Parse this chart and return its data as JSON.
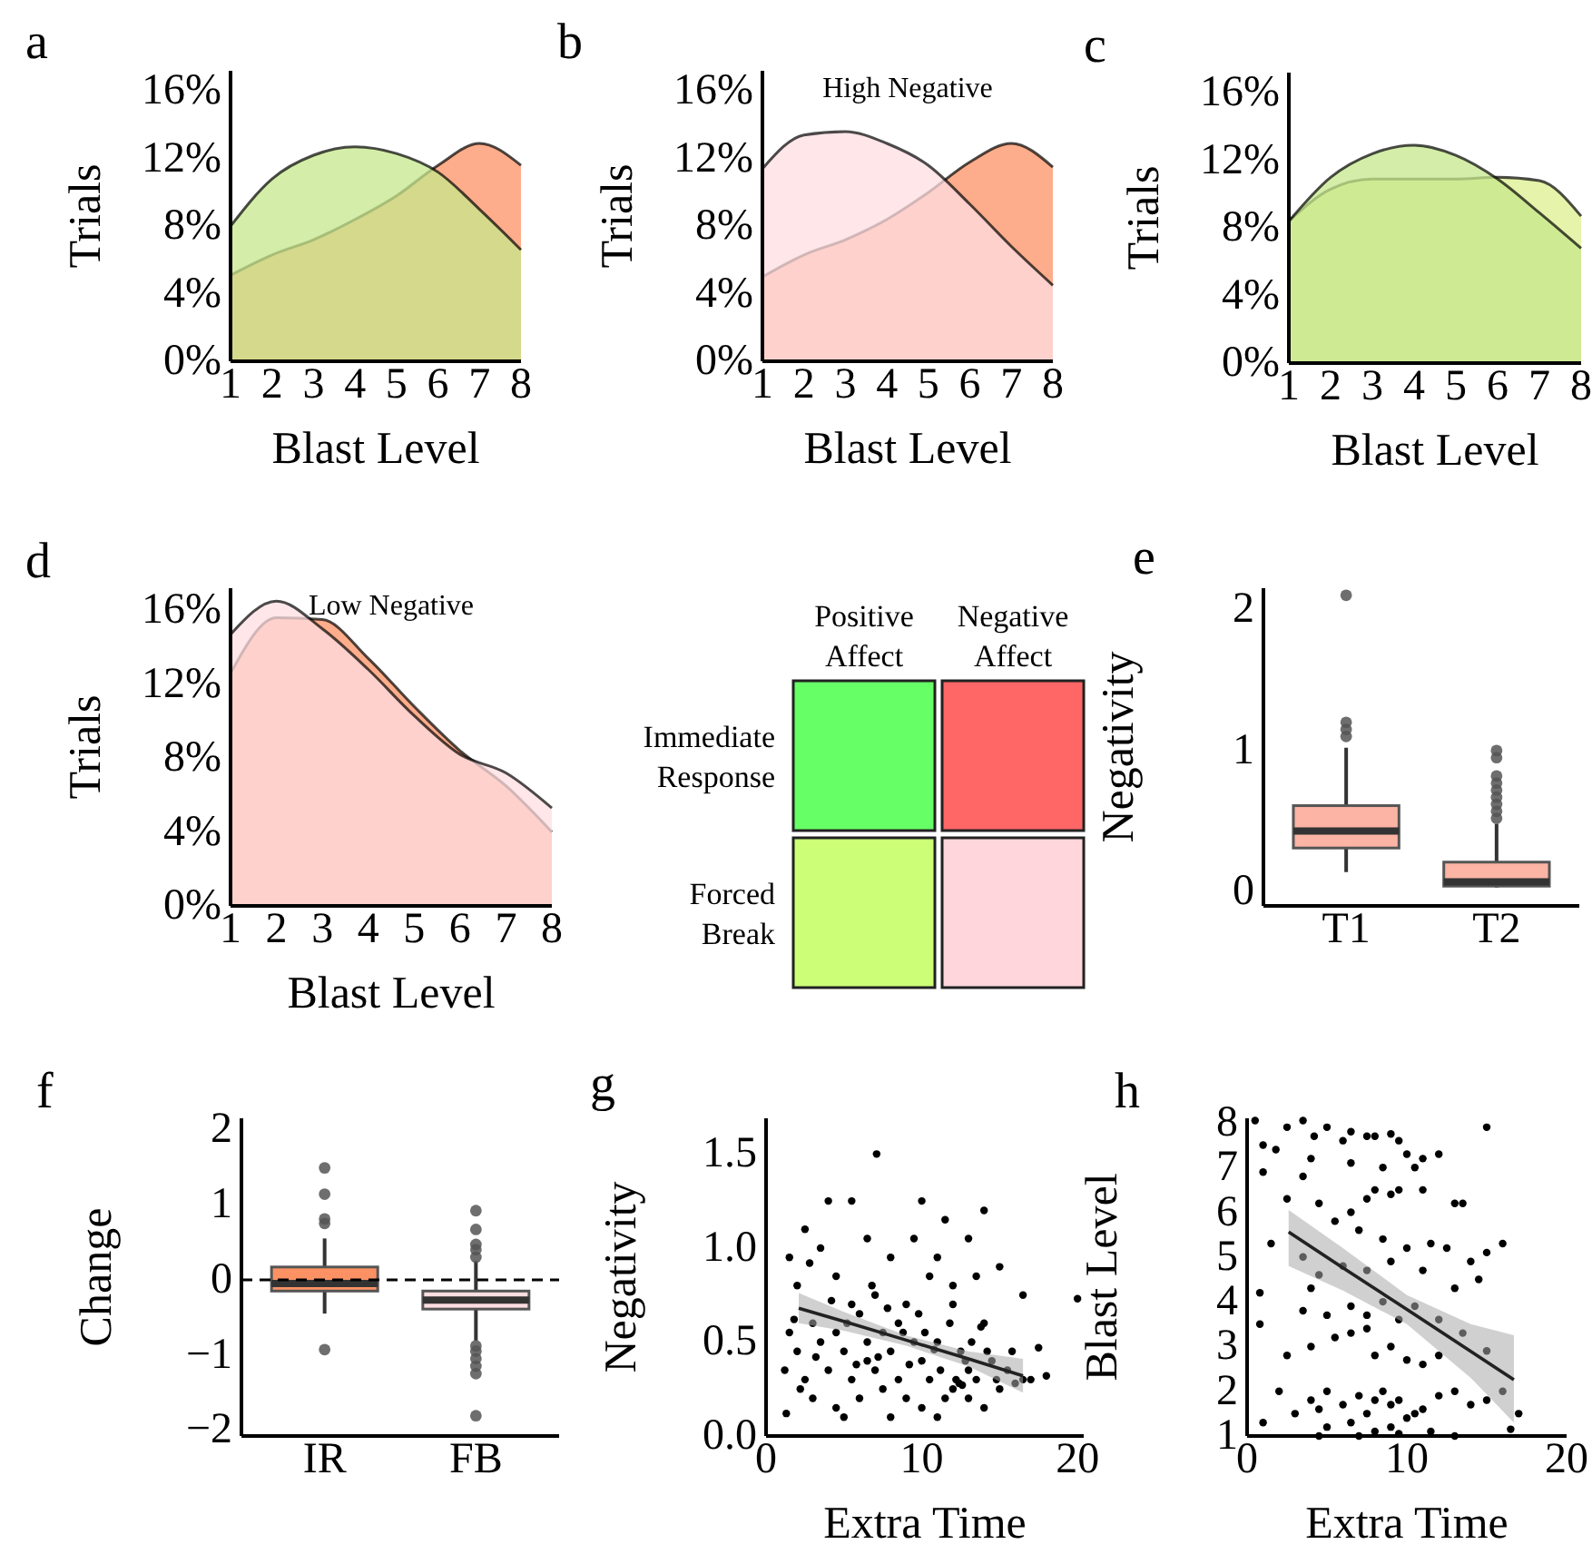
{
  "chart_data": [
    {
      "type": "area",
      "title": "a",
      "xlabel": "Blast Level",
      "ylabel": "Trials",
      "x": [
        1,
        2,
        3,
        4,
        5,
        6,
        7,
        8
      ],
      "xlim": [
        1,
        8
      ],
      "xticks": [
        1,
        2,
        3,
        4,
        5,
        6,
        7,
        8
      ],
      "ylim": [
        0,
        17.2
      ],
      "yticks": [
        {
          "value": 0,
          "label": "0%"
        },
        {
          "value": 4,
          "label": "4%"
        },
        {
          "value": 8,
          "label": "8%"
        },
        {
          "value": 12,
          "label": "12%"
        },
        {
          "value": 16,
          "label": "16%"
        }
      ],
      "series": [
        {
          "color": "#fc9264",
          "values": [
            5.1,
            6.3,
            7.2,
            8.4,
            9.8,
            11.6,
            12.9,
            11.6
          ]
        },
        {
          "color": "#c5e88c",
          "values": [
            8.0,
            10.8,
            12.2,
            12.7,
            12.3,
            11.2,
            9.0,
            6.6
          ]
        }
      ]
    },
    {
      "type": "area",
      "title": "b",
      "subtitle": "High Negative",
      "xlabel": "Blast Level",
      "ylabel": "Trials",
      "x": [
        1,
        2,
        3,
        4,
        5,
        6,
        7,
        8
      ],
      "xlim": [
        1,
        8
      ],
      "xticks": [
        1,
        2,
        3,
        4,
        5,
        6,
        7,
        8
      ],
      "ylim": [
        0,
        17.2
      ],
      "yticks": [
        {
          "value": 0,
          "label": "0%"
        },
        {
          "value": 4,
          "label": "4%"
        },
        {
          "value": 8,
          "label": "8%"
        },
        {
          "value": 12,
          "label": "12%"
        },
        {
          "value": 16,
          "label": "16%"
        }
      ],
      "series": [
        {
          "color": "#fc9264",
          "values": [
            5.0,
            6.3,
            7.2,
            8.4,
            10.0,
            11.8,
            12.9,
            11.5
          ]
        },
        {
          "color": "#fddde1",
          "values": [
            11.4,
            13.4,
            13.6,
            12.9,
            11.6,
            9.3,
            6.8,
            4.5
          ]
        }
      ]
    },
    {
      "type": "area",
      "title": "c",
      "xlabel": "Blast Level",
      "ylabel": "Trials",
      "x": [
        1,
        2,
        3,
        4,
        5,
        6,
        7,
        8
      ],
      "xlim": [
        1,
        8
      ],
      "xticks": [
        1,
        2,
        3,
        4,
        5,
        6,
        7,
        8
      ],
      "ylim": [
        0,
        17.2
      ],
      "yticks": [
        {
          "value": 0,
          "label": "0%"
        },
        {
          "value": 4,
          "label": "4%"
        },
        {
          "value": 8,
          "label": "8%"
        },
        {
          "value": 12,
          "label": "12%"
        },
        {
          "value": 16,
          "label": "16%"
        }
      ],
      "series": [
        {
          "color": "#ddf08f",
          "values": [
            8.4,
            10.3,
            10.9,
            10.9,
            10.9,
            11.0,
            10.8,
            8.7
          ]
        },
        {
          "color": "#c5e88c",
          "values": [
            8.4,
            11.0,
            12.4,
            12.9,
            12.3,
            10.9,
            8.9,
            6.8
          ]
        }
      ]
    },
    {
      "type": "area",
      "title": "d",
      "subtitle": "Low Negative",
      "xlabel": "Blast Level",
      "ylabel": "Trials",
      "x": [
        1,
        2,
        3,
        4,
        5,
        6,
        7,
        8
      ],
      "xlim": [
        1,
        8
      ],
      "xticks": [
        1,
        2,
        3,
        4,
        5,
        6,
        7,
        8
      ],
      "ylim": [
        0,
        17.2
      ],
      "yticks": [
        {
          "value": 0,
          "label": "0%"
        },
        {
          "value": 4,
          "label": "4%"
        },
        {
          "value": 8,
          "label": "8%"
        },
        {
          "value": 12,
          "label": "12%"
        },
        {
          "value": 16,
          "label": "16%"
        }
      ],
      "series": [
        {
          "color": "#fc9264",
          "values": [
            12.6,
            15.6,
            15.5,
            13.4,
            10.8,
            8.4,
            6.5,
            4.0
          ]
        },
        {
          "color": "#fddde1",
          "values": [
            14.7,
            16.5,
            15.0,
            12.8,
            10.3,
            8.2,
            7.2,
            5.3
          ]
        }
      ]
    },
    {
      "type": "other",
      "categories": [
        "Positive Affect",
        "Negative Affect"
      ],
      "y_categories": [
        "Immediate Response",
        "Forced Break"
      ],
      "colors": [
        [
          "#66ff66",
          "#ff6666"
        ],
        [
          "#ccff77",
          "#ffd6dc"
        ]
      ]
    },
    {
      "type": "box",
      "title": "e",
      "ylabel": "Negativity",
      "categories": [
        "T1",
        "T2"
      ],
      "ylim": [
        -0.1,
        2.15
      ],
      "yticks": [
        0,
        1,
        2
      ],
      "colors": [
        "#fcb4a4",
        "#fcb4a4"
      ],
      "boxes": [
        {
          "low": 0.14,
          "q1": 0.31,
          "median": 0.43,
          "q3": 0.61,
          "high": 1.02,
          "outliers": [
            1.1,
            1.15,
            1.2,
            2.1
          ]
        },
        {
          "low": 0.03,
          "q1": 0.04,
          "median": 0.07,
          "q3": 0.21,
          "high": 0.48,
          "outliers": [
            0.52,
            0.57,
            0.62,
            0.67,
            0.72,
            0.77,
            0.82,
            0.95,
            1.0
          ]
        }
      ]
    },
    {
      "type": "box",
      "title": "f",
      "ylabel": "Change",
      "categories": [
        "IR",
        "FB"
      ],
      "ylim": [
        -2.08,
        2.15
      ],
      "yticks": [
        {
          "value": -2,
          "label": "−2"
        },
        {
          "value": -1,
          "label": "−1"
        },
        0,
        1,
        2
      ],
      "colors": [
        "#fc9264",
        "#fddde1"
      ],
      "ref_lines": [
        {
          "axis": "y",
          "value": 0,
          "line_style": "dashed",
          "color": "#000000"
        }
      ],
      "boxes": [
        {
          "low": -0.45,
          "q1": -0.15,
          "median": -0.05,
          "q3": 0.17,
          "high": 0.55,
          "outliers": [
            1.49,
            1.14,
            0.81,
            0.75,
            -0.93
          ]
        },
        {
          "low": -0.81,
          "q1": -0.39,
          "median": -0.27,
          "q3": -0.15,
          "high": 0.25,
          "outliers": [
            0.92,
            0.67,
            0.47,
            0.4,
            0.3,
            -0.88,
            -0.95,
            -1.05,
            -1.15,
            -1.25,
            -1.81
          ]
        }
      ]
    },
    {
      "type": "scatter",
      "title": "g",
      "xlabel": "Extra Time",
      "ylabel": "Negativity",
      "xlim": [
        0,
        20.4
      ],
      "xticks": [
        0,
        10,
        20
      ],
      "ylim": [
        0,
        1.69
      ],
      "yticks": [
        {
          "value": 0,
          "label": "0.0"
        },
        {
          "value": 0.5,
          "label": "0.5"
        },
        {
          "value": 1,
          "label": "1.0"
        },
        {
          "value": 1.5,
          "label": "1.5"
        }
      ],
      "series": [
        {
          "type": "scatter",
          "marker": "circle",
          "color": "#000000",
          "x": [
            7.1,
            5.5,
            4,
            2.5,
            10,
            14,
            11.5,
            13,
            9.5,
            1.5,
            3.5,
            6.5,
            8,
            11,
            15,
            12,
            4.5,
            2,
            16.5,
            20,
            5.5,
            7,
            9,
            10.5,
            13.5,
            3,
            6,
            8.5,
            12,
            14,
            1.5,
            1.2,
            1.3,
            2,
            3.5,
            4.5,
            5,
            6.5,
            7.5,
            8,
            9.5,
            10,
            11,
            12.5,
            13,
            13.5,
            14.5,
            15.5,
            16.5,
            17,
            17.5,
            18,
            4,
            5.5,
            6,
            7,
            7.5,
            8.5,
            9,
            10.5,
            11.5,
            12,
            12.2,
            12.4,
            12.6,
            13,
            14,
            15,
            3,
            4.5,
            5,
            8,
            10,
            11,
            6.5,
            7.2,
            9.2,
            10.8,
            5.8,
            3.2,
            2.5,
            8.8,
            12.8,
            14.8,
            16,
            6.8,
            7.8,
            9.8,
            11.8,
            4.2,
            2.8,
            13.8,
            15.8,
            1.8,
            2.2,
            5.2,
            10.2,
            11.2,
            13.2,
            14.2
          ],
          "values": [
            1.5,
            1.25,
            1.25,
            1.1,
            1.25,
            1.2,
            1.15,
            1.05,
            1.05,
            0.95,
            1.0,
            1.05,
            0.95,
            0.95,
            0.9,
            0.8,
            0.85,
            0.8,
            0.75,
            0.73,
            0.7,
            0.75,
            0.7,
            0.85,
            0.85,
            0.6,
            0.65,
            0.6,
            0.7,
            0.6,
            0.55,
            0.35,
            0.12,
            0.45,
            0.5,
            0.55,
            0.45,
            0.5,
            0.55,
            0.45,
            0.5,
            0.4,
            0.5,
            0.45,
            0.35,
            0.3,
            0.4,
            0.35,
            0.3,
            0.3,
            0.47,
            0.32,
            0.35,
            0.3,
            0.2,
            0.35,
            0.25,
            0.3,
            0.2,
            0.3,
            0.2,
            0.25,
            0.3,
            0.28,
            0.27,
            0.2,
            0.15,
            0.25,
            0.2,
            0.15,
            0.1,
            0.1,
            0.15,
            0.1,
            0.4,
            0.42,
            0.38,
            0.46,
            0.38,
            0.42,
            0.3,
            0.55,
            0.4,
            0.3,
            0.28,
            0.8,
            0.68,
            0.65,
            0.6,
            0.72,
            0.92,
            0.58,
            0.45,
            0.62,
            0.25,
            0.6,
            0.55,
            0.35,
            0.5,
            0.45
          ]
        },
        {
          "type": "line",
          "color": "#222222",
          "x": [
            2.1,
            5,
            9,
            13,
            16.5
          ],
          "values": [
            0.68,
            0.61,
            0.51,
            0.41,
            0.32
          ],
          "lower": [
            0.6,
            0.56,
            0.48,
            0.37,
            0.23
          ],
          "upper": [
            0.76,
            0.66,
            0.535,
            0.45,
            0.41
          ]
        }
      ]
    },
    {
      "type": "scatter",
      "title": "h",
      "xlabel": "Extra Time",
      "ylabel": "Blast Level",
      "xlim": [
        0,
        20
      ],
      "xticks": [
        0,
        10,
        20
      ],
      "ylim": [
        1,
        8.1
      ],
      "yticks": [
        1,
        2,
        3,
        4,
        5,
        6,
        7,
        8
      ],
      "series": [
        {
          "type": "scatter",
          "marker": "circle",
          "color": "#000000",
          "x": [
            0.5,
            1,
            1.8,
            2.5,
            3.5,
            4.2,
            5,
            6,
            6.5,
            7.5,
            8,
            9,
            9.5,
            10,
            11,
            12,
            15,
            1,
            3.5,
            4,
            6.5,
            8.5,
            10.5,
            2.5,
            4.5,
            6.5,
            7.5,
            8,
            9,
            9.5,
            11,
            13,
            13.5,
            1.5,
            5.5,
            7,
            8.5,
            10,
            11.5,
            12.5,
            14,
            15,
            16,
            3.5,
            4.5,
            6,
            7.5,
            9,
            11,
            13,
            14.5,
            0.8,
            3.5,
            4,
            5,
            6.5,
            7.5,
            8.5,
            9.5,
            10.5,
            12,
            0.8,
            2.5,
            4,
            5.5,
            6.5,
            7.5,
            8,
            9,
            10,
            11,
            12,
            13.5,
            15,
            2,
            4,
            4.5,
            5,
            6,
            7,
            7.5,
            8,
            8.5,
            9,
            9.5,
            10.5,
            11,
            12,
            13,
            14,
            15,
            16,
            17,
            1,
            3,
            5,
            6.5,
            8,
            9,
            10,
            11.5,
            13,
            16.5,
            4.5,
            7,
            9.5
          ],
          "values": [
            8.05,
            7.5,
            7.4,
            7.9,
            8.05,
            7.7,
            7.9,
            7.6,
            7.8,
            7.7,
            7.7,
            7.75,
            7.6,
            7.3,
            7.2,
            7.3,
            7.9,
            6.9,
            6.8,
            7.2,
            7.1,
            7.0,
            7.0,
            6.3,
            6.2,
            6.0,
            6.3,
            6.5,
            6.4,
            6.5,
            6.5,
            6.2,
            6.2,
            5.3,
            5.8,
            5.6,
            5.4,
            5.2,
            5.3,
            5.2,
            4.9,
            5.1,
            5.3,
            5.0,
            4.6,
            4.8,
            4.7,
            4.9,
            4.7,
            4.3,
            4.5,
            4.2,
            3.8,
            4.3,
            3.7,
            3.9,
            3.7,
            4.0,
            3.6,
            3.9,
            3.6,
            3.5,
            2.8,
            3.0,
            3.2,
            3.3,
            3.4,
            2.8,
            3.0,
            2.7,
            2.6,
            2.8,
            3.3,
            2.9,
            2.0,
            1.8,
            1.6,
            2.0,
            1.7,
            1.9,
            1.5,
            1.8,
            2.0,
            1.7,
            1.8,
            1.5,
            1.6,
            1.9,
            2.0,
            1.7,
            1.8,
            2.0,
            1.5,
            1.3,
            1.5,
            1.2,
            1.3,
            1.1,
            1.2,
            1.4,
            1.1,
            1.0,
            1.15,
            1.0,
            1.0,
            1.05
          ]
        },
        {
          "type": "line",
          "color": "#222222",
          "x": [
            2.6,
            6,
            10,
            14,
            16.7
          ],
          "values": [
            5.56,
            4.76,
            3.83,
            2.89,
            2.26
          ],
          "lower": [
            4.8,
            4.25,
            3.5,
            2.3,
            1.3
          ],
          "upper": [
            6.05,
            5.2,
            4.15,
            3.5,
            3.25
          ]
        }
      ]
    }
  ]
}
